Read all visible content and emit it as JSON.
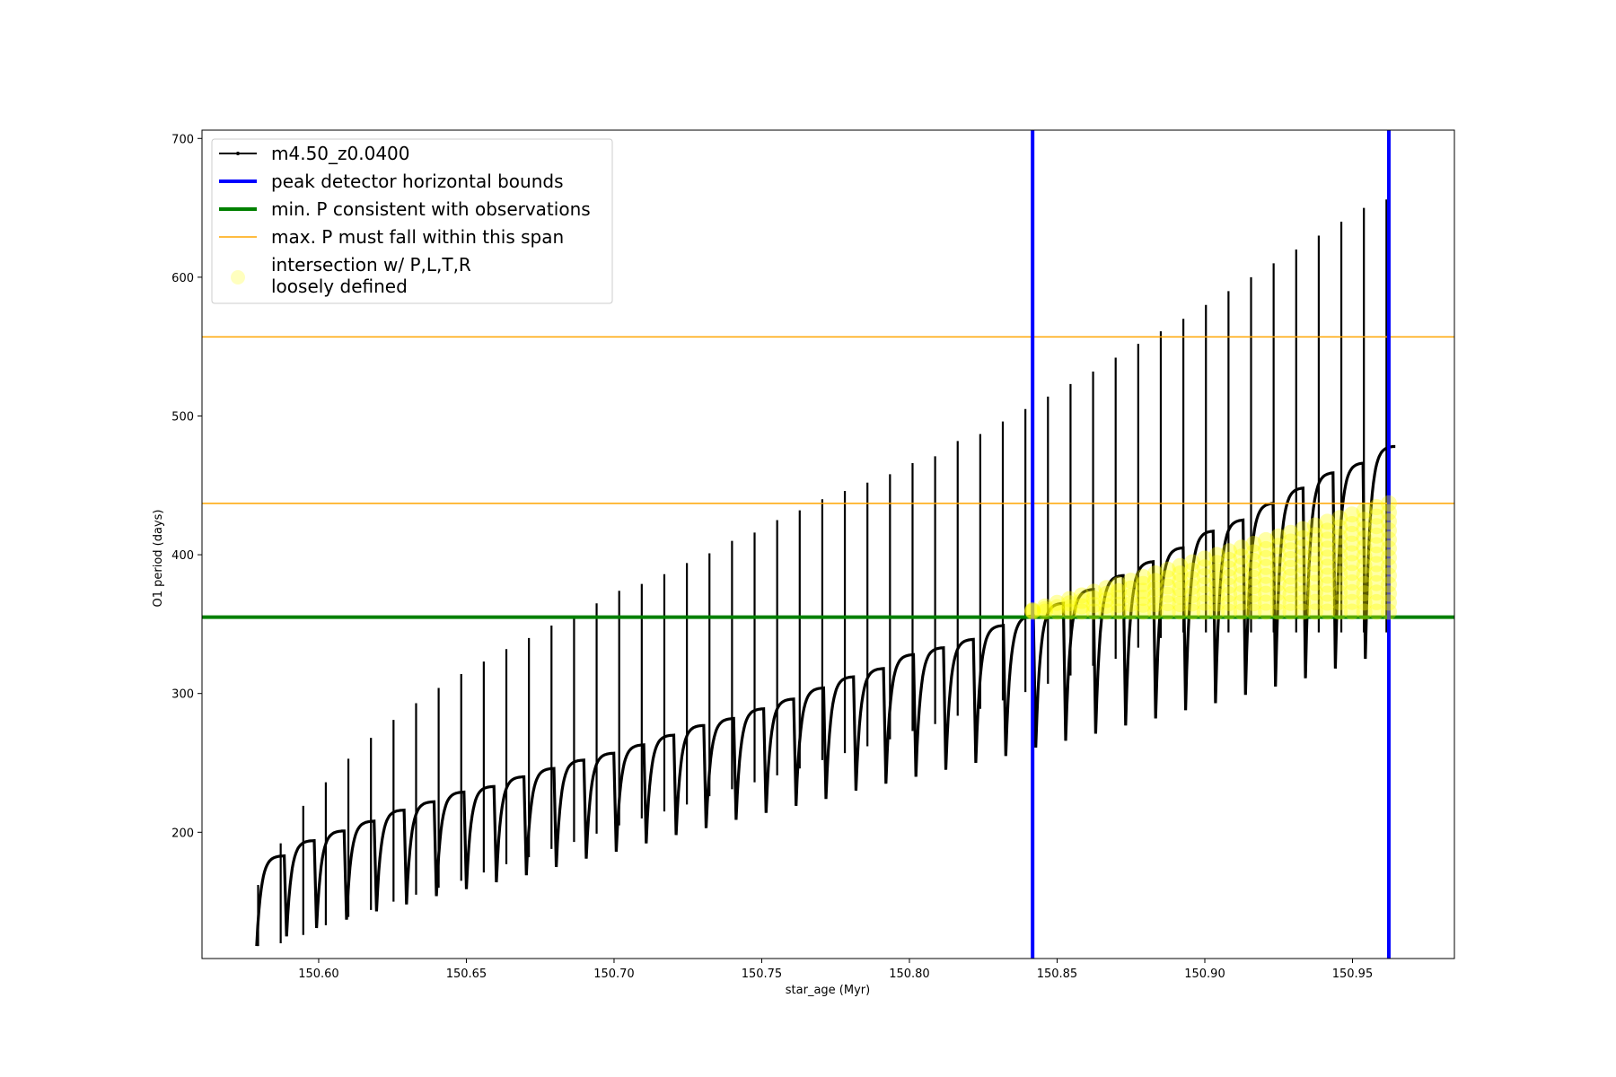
{
  "chart_data": {
    "type": "line",
    "xlabel": "star_age (Myr)",
    "ylabel": "O1 period (days)",
    "xlim": [
      150.5605,
      150.9845
    ],
    "ylim": [
      109,
      706
    ],
    "x_ticks": [
      "150.60",
      "150.65",
      "150.70",
      "150.75",
      "150.80",
      "150.85",
      "150.90",
      "150.95"
    ],
    "x_tick_values": [
      150.6,
      150.65,
      150.7,
      150.75,
      150.8,
      150.85,
      150.9,
      150.95
    ],
    "y_ticks": [
      "200",
      "300",
      "400",
      "500",
      "600",
      "700"
    ],
    "y_tick_values": [
      200,
      300,
      400,
      500,
      600,
      700
    ],
    "grid": false,
    "legend_position": "top-left",
    "legend": [
      {
        "label": "m4.50_z0.0400",
        "kind": "line-marker",
        "color": "#000000"
      },
      {
        "label": "peak detector horizontal bounds",
        "kind": "line",
        "color": "#0000ff"
      },
      {
        "label": "min. P consistent with observations",
        "kind": "line",
        "color": "#008000"
      },
      {
        "label": "max. P must fall within this span",
        "kind": "line",
        "color": "#ffa500"
      },
      {
        "label": "intersection w/ P,L,T,R",
        "label2": "loosely defined",
        "kind": "marker",
        "color": "#ffff00"
      }
    ],
    "series_main": {
      "name": "m4.50_z0.0400",
      "color": "#000000",
      "x_start": 150.579,
      "x_end": 150.9645,
      "n_pulses": 38,
      "pulse_start_values": [
        118,
        125,
        131,
        137,
        143,
        148,
        154,
        159,
        164,
        169,
        175,
        181,
        186,
        192,
        198,
        203,
        209,
        214,
        219,
        224,
        230,
        235,
        240,
        245,
        250,
        255,
        261,
        266,
        271,
        277,
        282,
        288,
        293,
        299,
        305,
        311,
        318,
        325
      ],
      "pulse_end_values": [
        183,
        194,
        201,
        208,
        216,
        222,
        229,
        233,
        240,
        246,
        252,
        257,
        263,
        270,
        277,
        282,
        289,
        296,
        304,
        312,
        318,
        328,
        333,
        339,
        349,
        356,
        365,
        375,
        385,
        395,
        405,
        417,
        425,
        437,
        448,
        459,
        466,
        478
      ],
      "spike_max_values": [
        162,
        192,
        219,
        236,
        253,
        268,
        281,
        293,
        304,
        314,
        323,
        332,
        340,
        349,
        356,
        365,
        374,
        379,
        386,
        394,
        401,
        410,
        416,
        425,
        432,
        440,
        446,
        452,
        458,
        466,
        471,
        482,
        487,
        496,
        505,
        514,
        523,
        532,
        542,
        552,
        561,
        570,
        580,
        590,
        600,
        610,
        620,
        630,
        640,
        650,
        656
      ],
      "spike_min_values": [
        118,
        120,
        126,
        133,
        139,
        144,
        150,
        155,
        160,
        165,
        171,
        177,
        182,
        188,
        193,
        199,
        205,
        210,
        215,
        220,
        226,
        231,
        236,
        241,
        246,
        252,
        257,
        262,
        267,
        273,
        278,
        284,
        289,
        295,
        301,
        307,
        313,
        320,
        325,
        333,
        340,
        344
      ]
    },
    "vlines": {
      "color": "#0000ff",
      "x": [
        150.8417,
        150.9623
      ]
    },
    "hline_min": {
      "color": "#008000",
      "y": 355
    },
    "hlines_max": {
      "color": "#ffa500",
      "y": [
        557,
        437
      ]
    },
    "intersection": {
      "color": "#ffff00",
      "x_range": [
        150.8417,
        150.9623
      ],
      "y_range": [
        355,
        437
      ]
    }
  }
}
